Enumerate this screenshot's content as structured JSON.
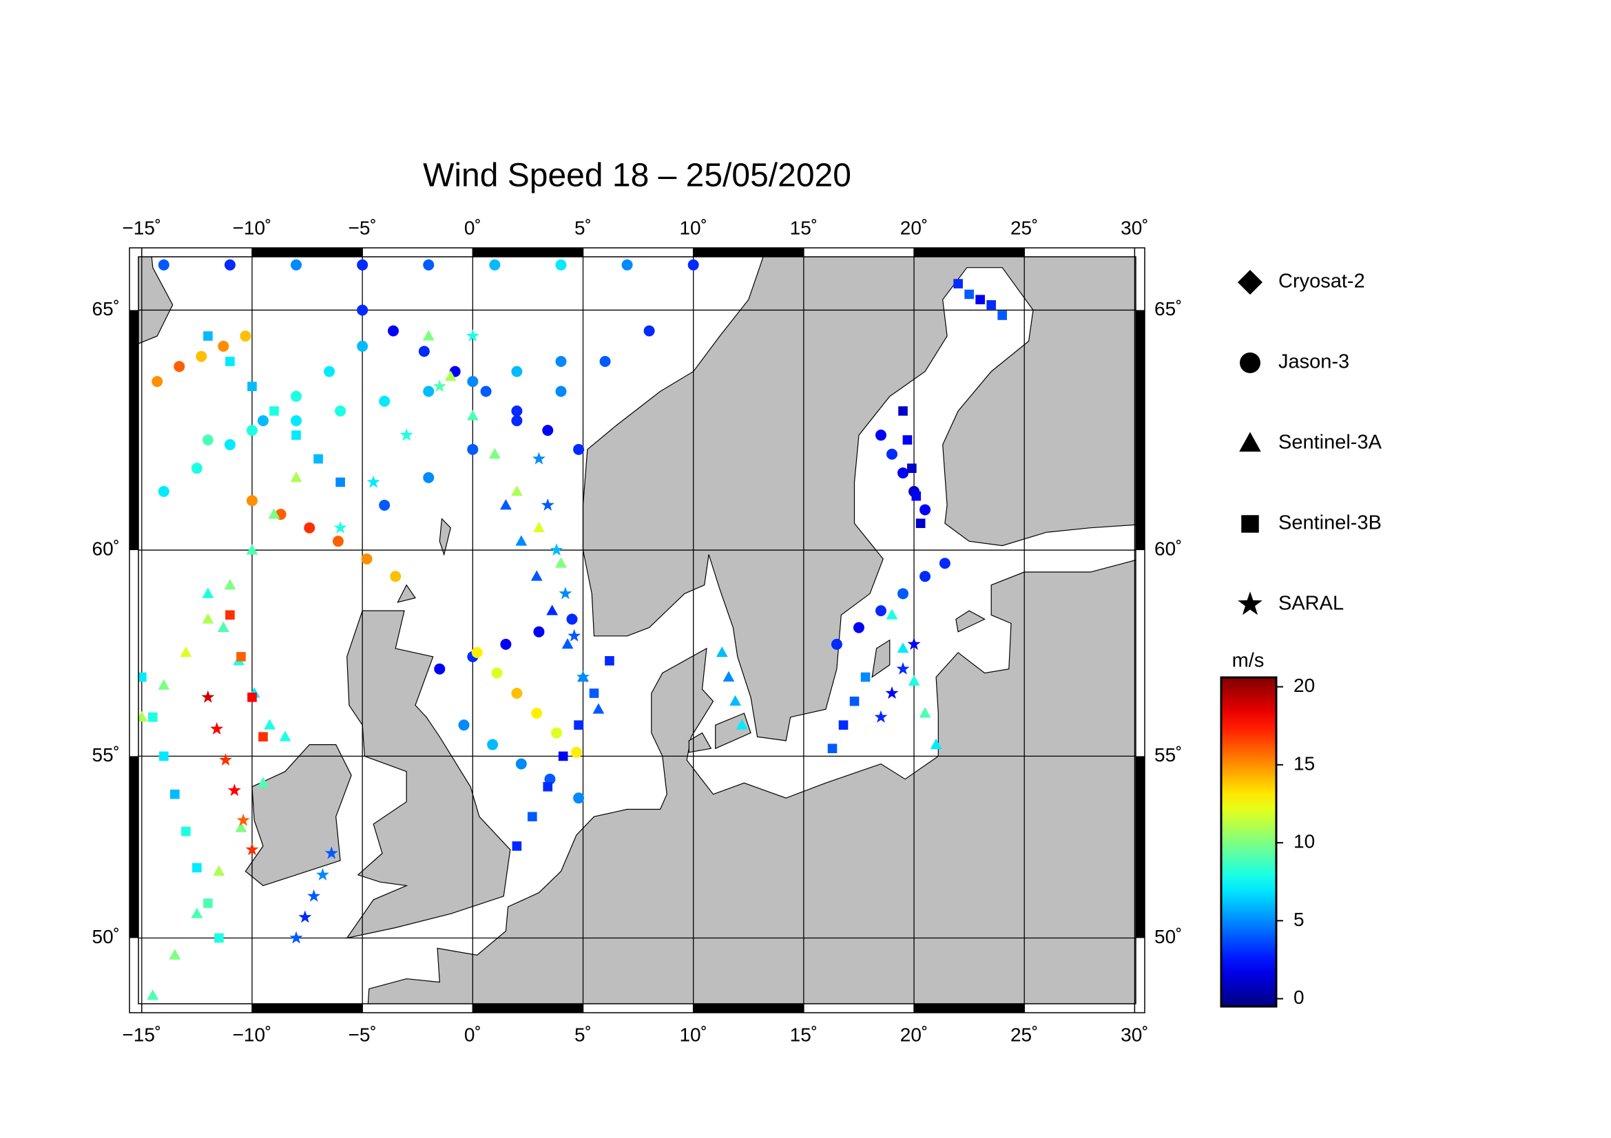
{
  "map": {
    "title": "Wind Speed 18 – 25/05/2020",
    "lon_range": [
      -15.15,
      30.05
    ],
    "lat_range": [
      48.05,
      66.0
    ],
    "projection": "mercator",
    "lon_ticks": [
      {
        "value": -15,
        "label": "−15˚"
      },
      {
        "value": -10,
        "label": "−10˚"
      },
      {
        "value": -5,
        "label": "−5˚"
      },
      {
        "value": 0,
        "label": "0˚"
      },
      {
        "value": 5,
        "label": "5˚"
      },
      {
        "value": 10,
        "label": "10˚"
      },
      {
        "value": 15,
        "label": "15˚"
      },
      {
        "value": 20,
        "label": "20˚"
      },
      {
        "value": 25,
        "label": "25˚"
      },
      {
        "value": 30,
        "label": "30˚"
      }
    ],
    "lat_ticks": [
      {
        "value": 50,
        "label": "50˚"
      },
      {
        "value": 55,
        "label": "55˚"
      },
      {
        "value": 60,
        "label": "60˚"
      },
      {
        "value": 65,
        "label": "65˚"
      }
    ],
    "grid": true,
    "land_color": "#bebebe",
    "colorbar": {
      "unit": "m/s",
      "colormap": "jet",
      "range": [
        -0.5,
        20.6
      ],
      "ticks": [
        0,
        5,
        10,
        15,
        20
      ]
    },
    "satellites": [
      {
        "name": "Cryosat-2",
        "marker": "diamond",
        "tracks": []
      },
      {
        "name": "Jason-3",
        "marker": "circle",
        "tracks": [
          {
            "lon": [
              -14,
              -11,
              -8,
              -5,
              -2,
              1,
              4,
              7,
              10
            ],
            "lat": [
              65.85,
              65.85,
              65.85,
              65.85,
              65.85,
              65.85,
              65.85,
              65.85,
              65.85
            ],
            "values": [
              4,
              3,
              5,
              3,
              4,
              6,
              7,
              5,
              3
            ]
          },
          {
            "lon": [
              -5,
              -3.6,
              -2.2,
              -0.8,
              0.6,
              2,
              3.4,
              4.8
            ],
            "lat": [
              65,
              64.6,
              64.2,
              63.8,
              63.4,
              63,
              62.6,
              62.2
            ],
            "values": [
              3,
              2,
              3,
              2,
              4,
              3,
              2,
              3
            ]
          },
          {
            "lon": [
              -14,
              -12.5,
              -11,
              -9.5,
              -8,
              -6.5,
              -5
            ],
            "lat": [
              61.3,
              61.8,
              62.3,
              62.8,
              63.3,
              63.8,
              64.3
            ],
            "values": [
              7,
              8,
              7,
              6,
              8,
              7,
              6
            ]
          },
          {
            "lon": [
              -14.3,
              -13.3,
              -12.3,
              -11.3,
              -10.3
            ],
            "lat": [
              63.6,
              63.9,
              64.1,
              64.3,
              64.5
            ],
            "values": [
              15,
              16,
              14,
              15,
              14
            ]
          },
          {
            "lon": [
              -10,
              -8.7,
              -7.4,
              -6.1,
              -4.8,
              -3.5
            ],
            "lat": [
              61.1,
              60.8,
              60.5,
              60.2,
              59.8,
              59.4
            ],
            "values": [
              15,
              16,
              17,
              16,
              15,
              14
            ]
          },
          {
            "lon": [
              -1.5,
              0,
              1.5,
              3,
              4.5
            ],
            "lat": [
              57.2,
              57.5,
              57.8,
              58.1,
              58.4
            ],
            "values": [
              2,
              3,
              2,
              2,
              3
            ]
          },
          {
            "lon": [
              0.2,
              1.1,
              2,
              2.9,
              3.8,
              4.7
            ],
            "lat": [
              57.6,
              57.1,
              56.6,
              56.1,
              55.6,
              55.1
            ],
            "values": [
              13,
              12,
              14,
              13,
              12,
              13
            ]
          },
          {
            "lon": [
              16.5,
              17.5,
              18.5,
              19.5,
              20.5,
              21.4
            ],
            "lat": [
              57.8,
              58.2,
              58.6,
              59,
              59.4,
              59.7
            ],
            "values": [
              3,
              2,
              3,
              4,
              3,
              3
            ]
          },
          {
            "lon": [
              18.5,
              19,
              19.5,
              20,
              20.5
            ],
            "lat": [
              62.5,
              62.1,
              61.7,
              61.3,
              60.9
            ],
            "values": [
              2,
              3,
              2,
              1,
              2
            ]
          },
          {
            "lon": [
              -4,
              -2,
              0,
              2,
              4,
              6,
              8
            ],
            "lat": [
              61.0,
              61.6,
              62.2,
              62.8,
              63.4,
              64.0,
              64.6
            ],
            "values": [
              4,
              5,
              4,
              3,
              5,
              4,
              3
            ]
          },
          {
            "lon": [
              -12,
              -10,
              -8,
              -6,
              -4,
              -2,
              0,
              2,
              4
            ],
            "lat": [
              62.4,
              62.6,
              62.8,
              63.0,
              63.2,
              63.4,
              63.6,
              63.8,
              64.0
            ],
            "values": [
              9,
              8,
              7,
              8,
              7,
              6,
              5,
              6,
              5
            ]
          },
          {
            "lon": [
              -0.4,
              0.9,
              2.2,
              3.5,
              4.8
            ],
            "lat": [
              55.8,
              55.3,
              54.8,
              54.4,
              53.9
            ],
            "values": [
              5,
              6,
              5,
              4,
              5
            ]
          }
        ]
      },
      {
        "name": "Sentinel-3A",
        "marker": "triangle",
        "tracks": [
          {
            "lon": [
              -14.5,
              -13.5,
              -12.5,
              -11.5,
              -10.5,
              -9.5,
              -8.5
            ],
            "lat": [
              48.3,
              49.5,
              50.7,
              51.9,
              53.1,
              54.3,
              55.5
            ],
            "values": [
              9,
              10,
              9,
              11,
              10,
              9,
              8
            ]
          },
          {
            "lon": [
              -15,
              -14,
              -13,
              -12,
              -11,
              -10,
              -9,
              -8
            ],
            "lat": [
              56,
              56.8,
              57.6,
              58.4,
              59.2,
              60,
              60.8,
              61.6
            ],
            "values": [
              11,
              10,
              12,
              11,
              10,
              9,
              10,
              11
            ]
          },
          {
            "lon": [
              -12,
              -11.3,
              -10.6,
              -9.9,
              -9.2
            ],
            "lat": [
              59,
              58.2,
              57.4,
              56.6,
              55.8
            ],
            "values": [
              8,
              9,
              8,
              7,
              8
            ]
          },
          {
            "lon": [
              1.5,
              2.2,
              2.9,
              3.6,
              4.3,
              5.0,
              5.7
            ],
            "lat": [
              61,
              60.2,
              59.4,
              58.6,
              57.8,
              57,
              56.2
            ],
            "values": [
              4,
              5,
              4,
              3,
              4,
              5,
              4
            ]
          },
          {
            "lon": [
              11.3,
              11.6,
              11.9,
              12.2
            ],
            "lat": [
              57.6,
              57.0,
              56.4,
              55.8
            ],
            "values": [
              6,
              5,
              6,
              7
            ]
          },
          {
            "lon": [
              19.0,
              19.5,
              20,
              20.5,
              21
            ],
            "lat": [
              58.5,
              57.7,
              56.9,
              56.1,
              55.3
            ],
            "values": [
              8,
              7,
              8,
              9,
              7
            ]
          },
          {
            "lon": [
              -2,
              -1,
              0,
              1,
              2,
              3,
              4
            ],
            "lat": [
              64.5,
              63.7,
              62.9,
              62.1,
              61.3,
              60.5,
              59.7
            ],
            "values": [
              10,
              11,
              9,
              10,
              11,
              12,
              10
            ]
          }
        ]
      },
      {
        "name": "Sentinel-3B",
        "marker": "square",
        "tracks": [
          {
            "lon": [
              -15,
              -14.5,
              -14,
              -13.5,
              -13,
              -12.5,
              -12,
              -11.5
            ],
            "lat": [
              57,
              56,
              55,
              54,
              53,
              52,
              51,
              50
            ],
            "values": [
              7,
              8,
              7,
              6,
              8,
              7,
              9,
              8
            ]
          },
          {
            "lon": [
              -11,
              -10.5,
              -10,
              -9.5
            ],
            "lat": [
              58.5,
              57.5,
              56.5,
              55.5
            ],
            "values": [
              17,
              16,
              18,
              17
            ]
          },
          {
            "lon": [
              19.5,
              19.7,
              19.9,
              20.1,
              20.3
            ],
            "lat": [
              63.0,
              62.4,
              61.8,
              61.2,
              60.6
            ],
            "values": [
              1,
              2,
              1,
              2,
              1
            ]
          },
          {
            "lon": [
              22,
              22.5,
              23,
              23.5,
              24
            ],
            "lat": [
              65.5,
              65.3,
              65.2,
              65.1,
              64.9
            ],
            "values": [
              3,
              4,
              2,
              3,
              4
            ]
          },
          {
            "lon": [
              16.3,
              16.8,
              17.3,
              17.8
            ],
            "lat": [
              55.2,
              55.8,
              56.4,
              57.0
            ],
            "values": [
              4,
              3,
              4,
              5
            ]
          },
          {
            "lon": [
              2,
              2.7,
              3.4,
              4.1,
              4.8,
              5.5,
              6.2
            ],
            "lat": [
              52.6,
              53.4,
              54.2,
              55,
              55.8,
              56.6,
              57.4
            ],
            "values": [
              3,
              4,
              3,
              2,
              3,
              4,
              3
            ]
          },
          {
            "lon": [
              -12,
              -11,
              -10,
              -9,
              -8,
              -7,
              -6
            ],
            "lat": [
              64.5,
              64,
              63.5,
              63,
              62.5,
              62,
              61.5
            ],
            "values": [
              6,
              7,
              6,
              8,
              7,
              6,
              5
            ]
          }
        ]
      },
      {
        "name": "SARAL",
        "marker": "star",
        "tracks": [
          {
            "lon": [
              -12,
              -11.6,
              -11.2,
              -10.8,
              -10.4,
              -10
            ],
            "lat": [
              56.5,
              55.7,
              54.9,
              54.1,
              53.3,
              52.5
            ],
            "values": [
              19,
              18,
              17,
              18,
              16,
              17
            ]
          },
          {
            "lon": [
              -8,
              -7.6,
              -7.2,
              -6.8,
              -6.4
            ],
            "lat": [
              50,
              50.6,
              51.2,
              51.8,
              52.4
            ],
            "values": [
              4,
              3,
              4,
              5,
              4
            ]
          },
          {
            "lon": [
              3,
              3.4,
              3.8,
              4.2,
              4.6,
              5
            ],
            "lat": [
              62,
              61,
              60,
              59,
              58,
              57
            ],
            "values": [
              5,
              4,
              6,
              5,
              4,
              5
            ]
          },
          {
            "lon": [
              -6,
              -4.5,
              -3,
              -1.5,
              0
            ],
            "lat": [
              60.5,
              61.5,
              62.5,
              63.5,
              64.5
            ],
            "values": [
              8,
              7,
              8,
              9,
              8
            ]
          },
          {
            "lon": [
              18.5,
              19,
              19.5,
              20
            ],
            "lat": [
              56.0,
              56.6,
              57.2,
              57.8
            ],
            "values": [
              3,
              2,
              3,
              2
            ]
          }
        ]
      }
    ]
  }
}
